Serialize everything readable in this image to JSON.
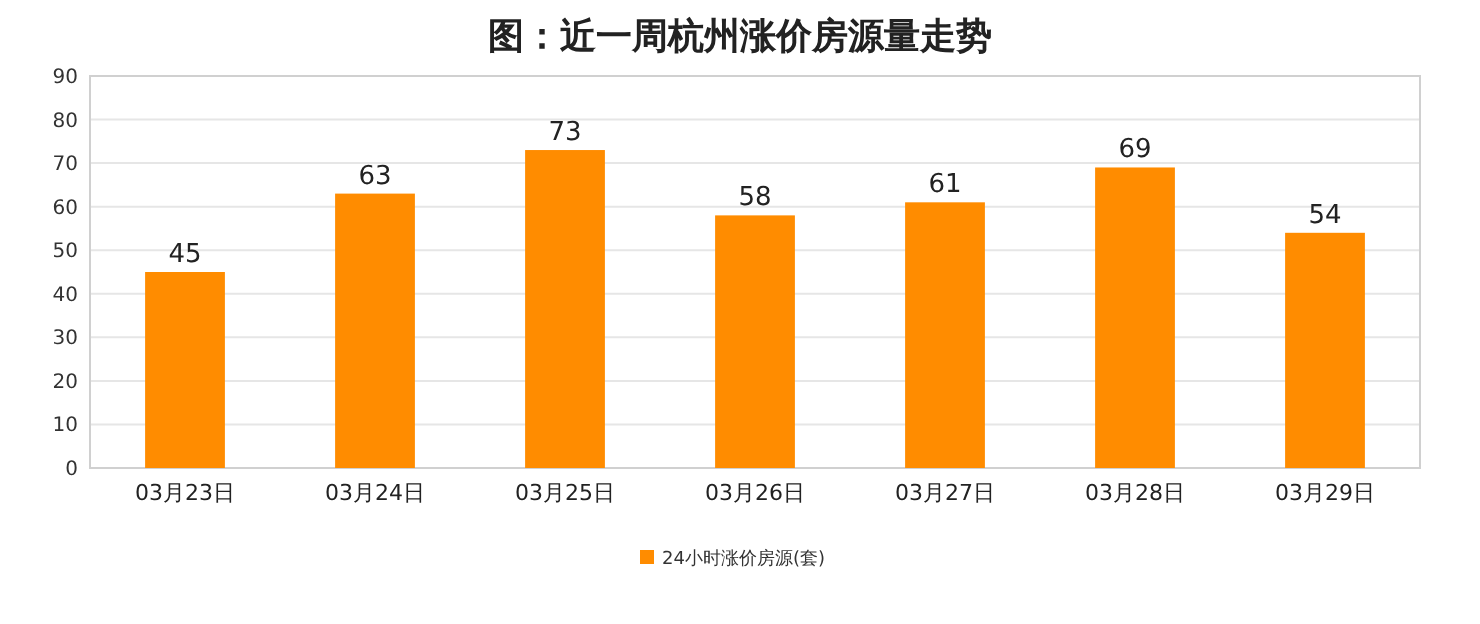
{
  "chart_data": {
    "type": "bar",
    "title": "图：近一周杭州涨价房源量走势",
    "categories": [
      "03月23日",
      "03月24日",
      "03月25日",
      "03月26日",
      "03月27日",
      "03月28日",
      "03月29日"
    ],
    "series": [
      {
        "name": "24小时涨价房源(套)",
        "color": "#ff8c00",
        "values": [
          45,
          63,
          73,
          58,
          61,
          69,
          54
        ]
      }
    ],
    "ylim": [
      0,
      90
    ],
    "yticks": [
      0,
      10,
      20,
      30,
      40,
      50,
      60,
      70,
      80,
      90
    ],
    "grid": "y",
    "data_labels": true,
    "legend": "bottom"
  }
}
